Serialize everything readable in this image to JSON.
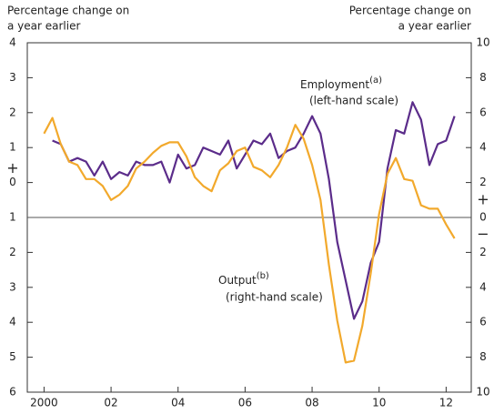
{
  "chart_data": {
    "type": "line",
    "y_label_lines": [
      "Percentage change on",
      "a year earlier"
    ],
    "y2_label_lines": [
      "Percentage change on",
      "a year earlier"
    ],
    "xlim": [
      1999.5,
      2012.75
    ],
    "xticks": [
      {
        "value": 2000,
        "label": "2000"
      },
      {
        "value": 2002,
        "label": "02"
      },
      {
        "value": 2004,
        "label": "04"
      },
      {
        "value": 2006,
        "label": "06"
      },
      {
        "value": 2008,
        "label": "08"
      },
      {
        "value": 2010,
        "label": "10"
      },
      {
        "value": 2012,
        "label": "12"
      }
    ],
    "ylim": [
      -6,
      4
    ],
    "yticks": [
      4,
      3,
      2,
      1,
      0,
      {
        "value": -1,
        "label": "1"
      },
      {
        "value": -2,
        "label": "2"
      },
      {
        "value": -3,
        "label": "3"
      },
      {
        "value": -4,
        "label": "4"
      },
      {
        "value": -5,
        "label": "5"
      },
      {
        "value": -6,
        "label": "6"
      }
    ],
    "y_sign_labels": [
      "+"
    ],
    "y2lim": [
      -10,
      10
    ],
    "y2ticks": [
      10,
      8,
      6,
      4,
      2,
      0,
      {
        "value": -2,
        "label": "2"
      },
      {
        "value": -4,
        "label": "4"
      },
      {
        "value": -6,
        "label": "6"
      },
      {
        "value": -8,
        "label": "8"
      },
      {
        "value": -10,
        "label": "10"
      }
    ],
    "y2_sign_labels": [
      "+",
      "−"
    ],
    "series": [
      {
        "name": "Employment",
        "note": "(a)",
        "scale": "(left-hand scale)",
        "color": "#5b2c8a",
        "axis": "y",
        "x": [
          2000.25,
          2000.5,
          2000.75,
          2001,
          2001.25,
          2001.5,
          2001.75,
          2002,
          2002.25,
          2002.5,
          2002.75,
          2003,
          2003.25,
          2003.5,
          2003.75,
          2004,
          2004.25,
          2004.5,
          2004.75,
          2005,
          2005.25,
          2005.5,
          2005.75,
          2006,
          2006.25,
          2006.5,
          2006.75,
          2007,
          2007.25,
          2007.5,
          2007.75,
          2008,
          2008.25,
          2008.5,
          2008.75,
          2009,
          2009.25,
          2009.5,
          2009.75,
          2010,
          2010.25,
          2010.5,
          2010.75,
          2011,
          2011.25,
          2011.5,
          2011.75,
          2012,
          2012.25
        ],
        "values": [
          1.2,
          1.1,
          0.6,
          0.7,
          0.6,
          0.2,
          0.6,
          0.1,
          0.3,
          0.2,
          0.6,
          0.5,
          0.5,
          0.6,
          0.0,
          0.8,
          0.4,
          0.5,
          1.0,
          0.9,
          0.8,
          1.2,
          0.4,
          0.8,
          1.2,
          1.1,
          1.4,
          0.7,
          0.9,
          1.0,
          1.4,
          1.9,
          1.4,
          0.1,
          -1.7,
          -2.8,
          -3.9,
          -3.4,
          -2.3,
          -1.7,
          0.4,
          1.5,
          1.4,
          2.3,
          1.8,
          0.5,
          1.1,
          1.2,
          1.9
        ]
      },
      {
        "name": "Output",
        "note": "(b)",
        "scale": "(right-hand scale)",
        "color": "#f2a92c",
        "axis": "y2",
        "x": [
          2000,
          2000.25,
          2000.5,
          2000.75,
          2001,
          2001.25,
          2001.5,
          2001.75,
          2002,
          2002.25,
          2002.5,
          2002.75,
          2003,
          2003.25,
          2003.5,
          2003.75,
          2004,
          2004.25,
          2004.5,
          2004.75,
          2005,
          2005.25,
          2005.5,
          2005.75,
          2006,
          2006.25,
          2006.5,
          2006.75,
          2007,
          2007.25,
          2007.5,
          2007.75,
          2008,
          2008.25,
          2008.5,
          2008.75,
          2009,
          2009.25,
          2009.5,
          2009.75,
          2010,
          2010.25,
          2010.5,
          2010.75,
          2011,
          2011.25,
          2011.5,
          2011.75,
          2012,
          2012.25
        ],
        "values": [
          4.8,
          5.7,
          4.2,
          3.2,
          3.0,
          2.2,
          2.2,
          1.8,
          1.0,
          1.3,
          1.8,
          2.8,
          3.2,
          3.7,
          4.1,
          4.3,
          4.3,
          3.5,
          2.3,
          1.8,
          1.5,
          2.7,
          3.1,
          3.8,
          4.0,
          2.9,
          2.7,
          2.3,
          3.0,
          4.0,
          5.3,
          4.5,
          3.0,
          1.0,
          -2.7,
          -5.9,
          -8.3,
          -8.2,
          -6.2,
          -3.2,
          0.2,
          2.5,
          3.4,
          2.2,
          2.1,
          0.7,
          0.5,
          0.5,
          -0.4,
          -1.2
        ]
      }
    ]
  }
}
